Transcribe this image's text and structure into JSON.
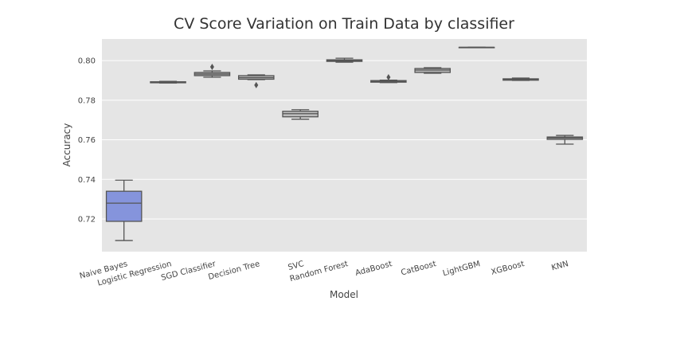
{
  "chart_data": {
    "type": "box",
    "title": "CV Score Variation on Train Data by classifier",
    "x_label": "Model",
    "y_label": "Accuracy",
    "categories": [
      "Naive Bayes",
      "Logistic Regression",
      "SGD Classifier",
      "Decision Tree",
      "SVC",
      "Random Forest",
      "AdaBoost",
      "CatBoost",
      "LightGBM",
      "XGBoost",
      "KNN"
    ],
    "colors": [
      "#8594dc",
      "#9a9a9a",
      "#a8a8a8",
      "#b4b4b4",
      "#bcbcbc",
      "#a0a0a0",
      "#a4a4a4",
      "#b8b8b8",
      "#a6a6a6",
      "#b0b0b0",
      "#9e9e9e"
    ],
    "stats": [
      {
        "low": 0.7091,
        "q1": 0.7188,
        "median": 0.728,
        "q3": 0.734,
        "high": 0.7396,
        "outliers": []
      },
      {
        "low": 0.7887,
        "q1": 0.7888,
        "median": 0.789,
        "q3": 0.7893,
        "high": 0.7895,
        "outliers": []
      },
      {
        "low": 0.7916,
        "q1": 0.7924,
        "median": 0.7932,
        "q3": 0.794,
        "high": 0.7948,
        "outliers": [
          0.7968
        ]
      },
      {
        "low": 0.7904,
        "q1": 0.7906,
        "median": 0.7914,
        "q3": 0.7924,
        "high": 0.7928,
        "outliers": [
          0.7876
        ]
      },
      {
        "low": 0.7704,
        "q1": 0.7716,
        "median": 0.7732,
        "q3": 0.7744,
        "high": 0.7752,
        "outliers": []
      },
      {
        "low": 0.7992,
        "q1": 0.7996,
        "median": 0.8,
        "q3": 0.8004,
        "high": 0.8012,
        "outliers": []
      },
      {
        "low": 0.7889,
        "q1": 0.7891,
        "median": 0.7895,
        "q3": 0.7899,
        "high": 0.7901,
        "outliers": [
          0.7916
        ]
      },
      {
        "low": 0.7936,
        "q1": 0.794,
        "median": 0.7952,
        "q3": 0.796,
        "high": 0.7964,
        "outliers": []
      },
      {
        "low": 0.8067,
        "q1": 0.8067,
        "median": 0.8067,
        "q3": 0.8067,
        "high": 0.8067,
        "outliers": []
      },
      {
        "low": 0.79,
        "q1": 0.7901,
        "median": 0.7904,
        "q3": 0.7908,
        "high": 0.7912,
        "outliers": []
      },
      {
        "low": 0.7578,
        "q1": 0.7602,
        "median": 0.761,
        "q3": 0.7614,
        "high": 0.7622,
        "outliers": []
      }
    ],
    "ylim": [
      0.7035,
      0.8109
    ],
    "yticks": [
      0.72,
      0.74,
      0.76,
      0.78,
      {
        "value": 0.8,
        "label": "0.80"
      }
    ],
    "grid": true
  }
}
